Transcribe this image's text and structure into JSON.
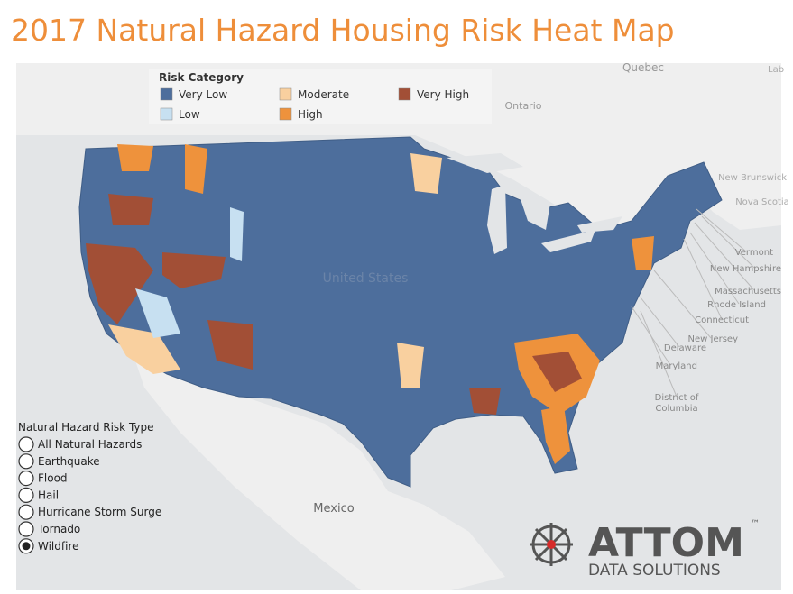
{
  "header": {
    "title": "2017 Natural Hazard Housing Risk Heat Map"
  },
  "legend": {
    "title": "Risk Category",
    "items": [
      {
        "label": "Very Low",
        "color": "#4d6e9c"
      },
      {
        "label": "Moderate",
        "color": "#f9d09f"
      },
      {
        "label": "Very High",
        "color": "#a24f36"
      },
      {
        "label": "Low",
        "color": "#c7e0f1"
      },
      {
        "label": "High",
        "color": "#ee923c"
      }
    ]
  },
  "map_labels": [
    "Quebec",
    "Ontario",
    "Lab",
    "New Brunswick",
    "Nova Scotia",
    "Vermont",
    "New Hampshire",
    "Massachusetts",
    "Rhode Island",
    "Connecticut",
    "New Jersey",
    "Delaware",
    "Maryland",
    "District of Columbia",
    "United States",
    "Mexico"
  ],
  "filter": {
    "title": "Natural Hazard Risk Type",
    "options": [
      "All Natural Hazards",
      "Earthquake",
      "Flood",
      "Hail",
      "Hurricane Storm Surge",
      "Tornado",
      "Wildfire"
    ],
    "selected": 6
  },
  "logo": {
    "name": "ATTOM",
    "trademark": "™",
    "tagline": "DATA SOLUTIONS"
  }
}
